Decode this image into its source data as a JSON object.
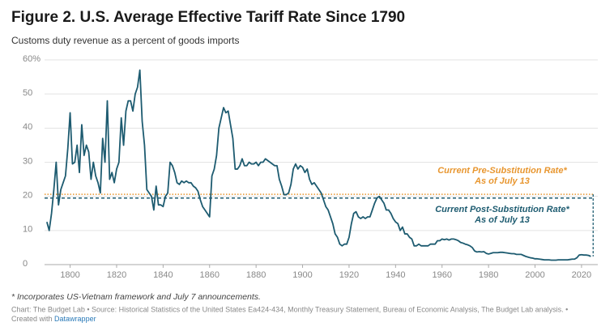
{
  "chart_data": {
    "type": "line",
    "title": "Figure 2. U.S. Average Effective Tariff Rate Since 1790",
    "subtitle": "Customs duty revenue as a percent of goods imports",
    "note": "* Incorporates US-Vietnam framework and July 7 announcements.",
    "source": "Chart: The Budget Lab • Source: Historical Statistics of the United States Ea424-434, Monthly Treasury Statement, Bureau of Economic Analysis, The Budget Lab analysis. •",
    "credit": "Created with",
    "credit_link": "Datawrapper",
    "xlim": [
      1789,
      2027
    ],
    "ylim": [
      0,
      60
    ],
    "xticks": [
      1800,
      1820,
      1840,
      1860,
      1880,
      1900,
      1920,
      1940,
      1960,
      1980,
      2000,
      2020
    ],
    "yticks": [
      0,
      10,
      20,
      30,
      40,
      50,
      {
        "value": 60,
        "label": "60%"
      }
    ],
    "grid": true,
    "reference_lines": [
      {
        "value": 20.6,
        "x_end": 2025,
        "color": "#e8962f",
        "style": "dotted",
        "label": [
          "Current Pre-Substitution Rate*",
          "As of July 13"
        ]
      },
      {
        "value": 19.5,
        "x_end": 2025,
        "color": "#1d5b70",
        "style": "dashed",
        "label": [
          "Current Post-Substitution Rate*",
          "As of July 13"
        ]
      }
    ],
    "series": [
      {
        "name": "Average effective tariff rate",
        "color": "#1d5b70",
        "x": [
          1790,
          1791,
          1792,
          1793,
          1794,
          1795,
          1796,
          1797,
          1798,
          1799,
          1800,
          1801,
          1802,
          1803,
          1804,
          1805,
          1806,
          1807,
          1808,
          1809,
          1810,
          1811,
          1812,
          1813,
          1814,
          1815,
          1816,
          1817,
          1818,
          1819,
          1820,
          1821,
          1822,
          1823,
          1824,
          1825,
          1826,
          1827,
          1828,
          1829,
          1830,
          1831,
          1832,
          1833,
          1834,
          1835,
          1836,
          1837,
          1838,
          1839,
          1840,
          1841,
          1842,
          1843,
          1844,
          1845,
          1846,
          1847,
          1848,
          1849,
          1850,
          1851,
          1852,
          1853,
          1854,
          1855,
          1856,
          1857,
          1858,
          1859,
          1860,
          1861,
          1862,
          1863,
          1864,
          1865,
          1866,
          1867,
          1868,
          1869,
          1870,
          1871,
          1872,
          1873,
          1874,
          1875,
          1876,
          1877,
          1878,
          1879,
          1880,
          1881,
          1882,
          1883,
          1884,
          1885,
          1886,
          1887,
          1888,
          1889,
          1890,
          1891,
          1892,
          1893,
          1894,
          1895,
          1896,
          1897,
          1898,
          1899,
          1900,
          1901,
          1902,
          1903,
          1904,
          1905,
          1906,
          1907,
          1908,
          1909,
          1910,
          1911,
          1912,
          1913,
          1914,
          1915,
          1916,
          1917,
          1918,
          1919,
          1920,
          1921,
          1922,
          1923,
          1924,
          1925,
          1926,
          1927,
          1928,
          1929,
          1930,
          1931,
          1932,
          1933,
          1934,
          1935,
          1936,
          1937,
          1938,
          1939,
          1940,
          1941,
          1942,
          1943,
          1944,
          1945,
          1946,
          1947,
          1948,
          1949,
          1950,
          1951,
          1952,
          1953,
          1954,
          1955,
          1956,
          1957,
          1958,
          1959,
          1960,
          1961,
          1962,
          1963,
          1964,
          1965,
          1966,
          1967,
          1968,
          1969,
          1970,
          1971,
          1972,
          1973,
          1974,
          1975,
          1976,
          1977,
          1978,
          1979,
          1980,
          1981,
          1982,
          1983,
          1984,
          1985,
          1986,
          1987,
          1988,
          1989,
          1990,
          1991,
          1992,
          1993,
          1994,
          1995,
          1996,
          1997,
          1998,
          1999,
          2000,
          2001,
          2002,
          2003,
          2004,
          2005,
          2006,
          2007,
          2008,
          2009,
          2010,
          2011,
          2012,
          2013,
          2014,
          2015,
          2016,
          2017,
          2018,
          2019,
          2020,
          2021,
          2022,
          2023,
          2024
        ],
        "values": [
          12.5,
          10,
          15,
          22,
          30,
          17.5,
          22,
          24,
          26,
          34,
          44.5,
          29.5,
          30,
          35,
          27,
          41,
          32,
          35,
          33,
          25,
          30,
          26,
          24,
          21,
          37,
          30,
          48,
          25,
          27,
          24,
          28,
          30,
          43,
          35,
          45,
          48,
          48,
          45,
          50,
          52,
          57,
          42,
          35,
          22,
          21,
          20,
          16,
          23,
          17.5,
          17.5,
          17,
          20,
          21,
          30,
          29,
          27,
          24,
          23.5,
          24.5,
          24,
          24.5,
          24,
          24,
          23,
          22.5,
          21.5,
          19,
          17,
          16,
          15,
          14,
          26,
          28,
          32,
          40,
          43,
          46,
          44.5,
          45,
          41,
          37,
          28,
          28,
          29,
          31,
          29,
          29,
          30,
          29.5,
          29.5,
          30,
          29,
          30,
          30,
          31,
          30.5,
          30,
          29.5,
          29,
          29,
          25,
          23,
          20.5,
          20.5,
          21,
          23.5,
          28,
          29.5,
          28,
          29,
          28.5,
          27,
          28,
          25,
          23.5,
          24,
          23,
          22,
          21,
          19,
          17,
          16,
          14,
          12,
          9,
          8,
          6,
          5.5,
          6,
          6,
          8,
          12,
          15,
          15.5,
          14,
          13.5,
          14,
          13.5,
          14,
          14,
          16,
          18,
          19.5,
          20,
          19,
          18,
          16,
          16,
          15,
          13.5,
          12.5,
          12,
          10,
          11,
          9,
          9,
          8,
          7.5,
          5.5,
          5.5,
          6,
          5.5,
          5.5,
          5.5,
          5.5,
          6,
          6,
          6,
          7,
          7,
          7.5,
          7.3,
          7.5,
          7.2,
          7.5,
          7.5,
          7.3,
          7,
          6.5,
          6.3,
          6,
          5.8,
          5.5,
          5,
          4,
          3.7,
          3.8,
          3.7,
          3.8,
          3.3,
          3.1,
          3.3,
          3.5,
          3.5,
          3.5,
          3.6,
          3.6,
          3.5,
          3.4,
          3.3,
          3.2,
          3.2,
          3,
          3,
          3,
          2.7,
          2.4,
          2.2,
          2,
          1.9,
          1.7,
          1.7,
          1.6,
          1.5,
          1.4,
          1.4,
          1.4,
          1.3,
          1.3,
          1.3,
          1.4,
          1.4,
          1.4,
          1.4,
          1.4,
          1.5,
          1.6,
          1.6,
          2,
          2.8,
          2.9,
          2.8,
          2.8,
          2.7,
          2.4
        ]
      }
    ]
  }
}
